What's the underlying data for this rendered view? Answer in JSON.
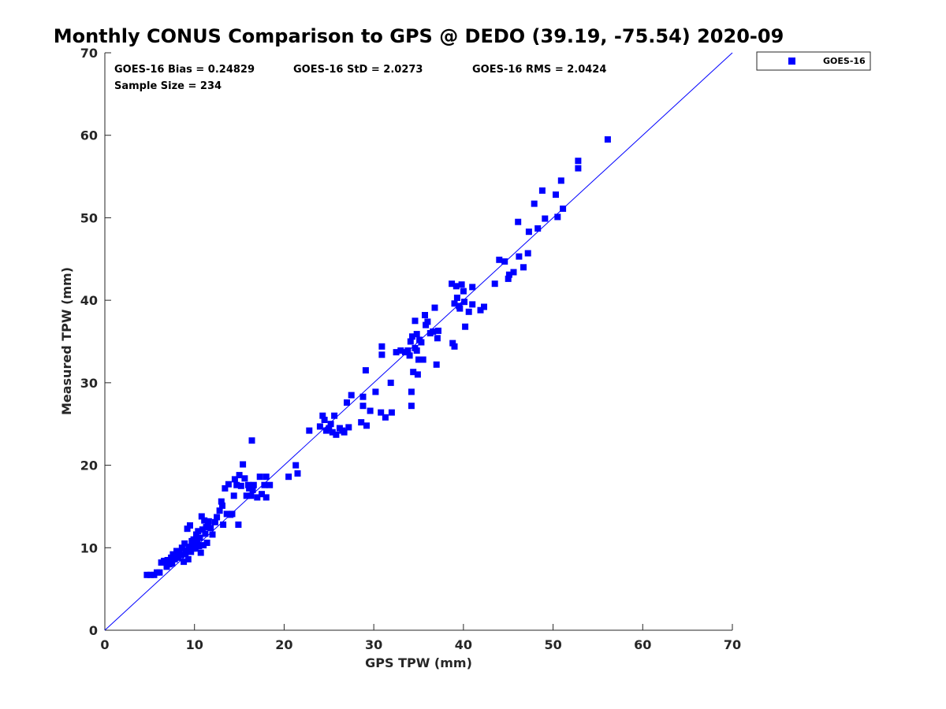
{
  "chart_data": {
    "type": "scatter",
    "title": "Monthly CONUS Comparison to GPS @ DEDO (39.19, -75.54) 2020-09",
    "xlabel": "GPS TPW (mm)",
    "ylabel": "Measured TPW (mm)",
    "xlim": [
      0,
      70
    ],
    "ylim": [
      0,
      70
    ],
    "xticks": [
      0,
      10,
      20,
      30,
      40,
      50,
      60,
      70
    ],
    "yticks": [
      0,
      10,
      20,
      30,
      40,
      50,
      60,
      70
    ],
    "grid": false,
    "legend_position": "outside-top-right",
    "reference_line": {
      "x": [
        0,
        70
      ],
      "y": [
        0,
        70
      ],
      "color": "#0000ff"
    },
    "annotations": [
      "GOES-16 Bias = 0.24829",
      "GOES-16 StD = 2.0273",
      "GOES-16 RMS = 2.0424",
      "Sample Size = 234"
    ],
    "series": [
      {
        "name": "GOES-16",
        "color": "#0000ff",
        "marker": "square",
        "points": [
          [
            4.7,
            6.7
          ],
          [
            5.1,
            6.7
          ],
          [
            5.5,
            6.7
          ],
          [
            5.8,
            7.0
          ],
          [
            6.1,
            7.0
          ],
          [
            6.3,
            8.2
          ],
          [
            6.6,
            8.4
          ],
          [
            6.9,
            7.7
          ],
          [
            7.0,
            8.5
          ],
          [
            7.2,
            8.0
          ],
          [
            7.4,
            8.8
          ],
          [
            7.5,
            8.1
          ],
          [
            7.6,
            9.2
          ],
          [
            7.8,
            8.6
          ],
          [
            8.0,
            9.0
          ],
          [
            8.0,
            9.6
          ],
          [
            8.2,
            8.8
          ],
          [
            8.3,
            9.4
          ],
          [
            8.5,
            9.1
          ],
          [
            8.6,
            10.0
          ],
          [
            8.8,
            8.3
          ],
          [
            8.9,
            10.5
          ],
          [
            9.0,
            9.3
          ],
          [
            9.1,
            9.7
          ],
          [
            9.2,
            12.3
          ],
          [
            9.3,
            8.6
          ],
          [
            9.4,
            10.1
          ],
          [
            9.5,
            12.7
          ],
          [
            9.6,
            9.5
          ],
          [
            9.7,
            10.8
          ],
          [
            9.8,
            9.9
          ],
          [
            9.9,
            11.0
          ],
          [
            10.0,
            10.4
          ],
          [
            10.1,
            9.9
          ],
          [
            10.2,
            11.6
          ],
          [
            10.3,
            10.6
          ],
          [
            10.4,
            12.0
          ],
          [
            10.5,
            10.2
          ],
          [
            10.6,
            11.2
          ],
          [
            10.7,
            9.4
          ],
          [
            10.8,
            13.8
          ],
          [
            10.9,
            12.2
          ],
          [
            11.0,
            10.3
          ],
          [
            11.1,
            13.3
          ],
          [
            11.2,
            11.7
          ],
          [
            11.3,
            12.5
          ],
          [
            11.4,
            10.6
          ],
          [
            11.5,
            12.8
          ],
          [
            11.6,
            13.2
          ],
          [
            11.8,
            12.4
          ],
          [
            12.0,
            11.6
          ],
          [
            12.3,
            13.1
          ],
          [
            12.5,
            13.7
          ],
          [
            12.8,
            14.5
          ],
          [
            13.0,
            15.6
          ],
          [
            13.1,
            15.1
          ],
          [
            13.2,
            12.8
          ],
          [
            13.4,
            17.2
          ],
          [
            13.6,
            14.1
          ],
          [
            13.8,
            17.7
          ],
          [
            14.0,
            14.0
          ],
          [
            14.2,
            14.1
          ],
          [
            14.4,
            16.3
          ],
          [
            14.5,
            18.3
          ],
          [
            14.7,
            17.6
          ],
          [
            14.9,
            12.8
          ],
          [
            15.0,
            18.8
          ],
          [
            15.2,
            17.5
          ],
          [
            15.4,
            20.1
          ],
          [
            15.6,
            18.4
          ],
          [
            15.8,
            16.3
          ],
          [
            16.0,
            17.6
          ],
          [
            16.1,
            17.2
          ],
          [
            16.3,
            16.3
          ],
          [
            16.4,
            23.0
          ],
          [
            16.5,
            17.0
          ],
          [
            16.6,
            17.6
          ],
          [
            17.0,
            16.1
          ],
          [
            17.3,
            18.6
          ],
          [
            17.5,
            16.5
          ],
          [
            17.8,
            17.6
          ],
          [
            18.0,
            16.1
          ],
          [
            18.0,
            18.6
          ],
          [
            18.4,
            17.6
          ],
          [
            20.5,
            18.6
          ],
          [
            21.3,
            20.0
          ],
          [
            21.5,
            19.0
          ],
          [
            22.8,
            24.2
          ],
          [
            24.0,
            24.7
          ],
          [
            24.3,
            26.0
          ],
          [
            24.5,
            25.5
          ],
          [
            24.7,
            24.2
          ],
          [
            25.0,
            24.5
          ],
          [
            25.2,
            25.0
          ],
          [
            25.4,
            24.0
          ],
          [
            25.6,
            26.0
          ],
          [
            25.8,
            23.7
          ],
          [
            26.2,
            24.5
          ],
          [
            26.5,
            24.2
          ],
          [
            26.7,
            24.0
          ],
          [
            27.0,
            27.6
          ],
          [
            27.2,
            24.6
          ],
          [
            27.5,
            28.5
          ],
          [
            28.6,
            25.2
          ],
          [
            28.8,
            27.2
          ],
          [
            28.8,
            28.3
          ],
          [
            29.1,
            31.5
          ],
          [
            29.2,
            24.8
          ],
          [
            29.6,
            26.6
          ],
          [
            30.2,
            28.9
          ],
          [
            30.8,
            26.4
          ],
          [
            30.9,
            33.4
          ],
          [
            30.9,
            34.4
          ],
          [
            31.3,
            25.8
          ],
          [
            31.9,
            30.0
          ],
          [
            32.0,
            26.4
          ],
          [
            32.5,
            33.7
          ],
          [
            33.0,
            33.9
          ],
          [
            33.5,
            33.7
          ],
          [
            33.8,
            33.9
          ],
          [
            34.0,
            33.3
          ],
          [
            34.1,
            35.0
          ],
          [
            34.2,
            27.2
          ],
          [
            34.2,
            28.9
          ],
          [
            34.3,
            35.6
          ],
          [
            34.4,
            31.3
          ],
          [
            34.6,
            34.2
          ],
          [
            34.6,
            37.5
          ],
          [
            34.8,
            33.9
          ],
          [
            34.8,
            35.9
          ],
          [
            34.9,
            31.0
          ],
          [
            35.0,
            32.8
          ],
          [
            35.1,
            35.2
          ],
          [
            35.3,
            34.9
          ],
          [
            35.5,
            32.8
          ],
          [
            35.7,
            38.2
          ],
          [
            35.8,
            37.0
          ],
          [
            36.0,
            37.4
          ],
          [
            36.3,
            36.0
          ],
          [
            36.6,
            36.2
          ],
          [
            36.8,
            39.1
          ],
          [
            37.0,
            32.2
          ],
          [
            37.1,
            35.4
          ],
          [
            37.2,
            36.3
          ],
          [
            38.7,
            42.0
          ],
          [
            38.8,
            34.8
          ],
          [
            39.0,
            34.4
          ],
          [
            39.0,
            39.6
          ],
          [
            39.2,
            41.7
          ],
          [
            39.3,
            40.3
          ],
          [
            39.5,
            39.3
          ],
          [
            39.6,
            39.0
          ],
          [
            39.8,
            41.9
          ],
          [
            40.0,
            41.1
          ],
          [
            40.1,
            39.8
          ],
          [
            40.2,
            36.8
          ],
          [
            40.6,
            38.6
          ],
          [
            41.0,
            41.6
          ],
          [
            41.0,
            39.5
          ],
          [
            41.9,
            38.8
          ],
          [
            42.3,
            39.2
          ],
          [
            43.5,
            42.0
          ],
          [
            44.0,
            44.9
          ],
          [
            44.6,
            44.7
          ],
          [
            45.0,
            42.6
          ],
          [
            45.1,
            43.1
          ],
          [
            45.6,
            43.4
          ],
          [
            46.1,
            49.5
          ],
          [
            46.2,
            45.3
          ],
          [
            46.7,
            44.0
          ],
          [
            47.2,
            45.7
          ],
          [
            47.3,
            48.3
          ],
          [
            47.9,
            51.7
          ],
          [
            48.3,
            48.7
          ],
          [
            48.8,
            53.3
          ],
          [
            49.1,
            49.9
          ],
          [
            50.3,
            52.8
          ],
          [
            50.5,
            50.1
          ],
          [
            50.9,
            54.5
          ],
          [
            51.1,
            51.1
          ],
          [
            52.8,
            56.0
          ],
          [
            52.8,
            56.9
          ],
          [
            56.1,
            59.5
          ]
        ]
      }
    ]
  }
}
